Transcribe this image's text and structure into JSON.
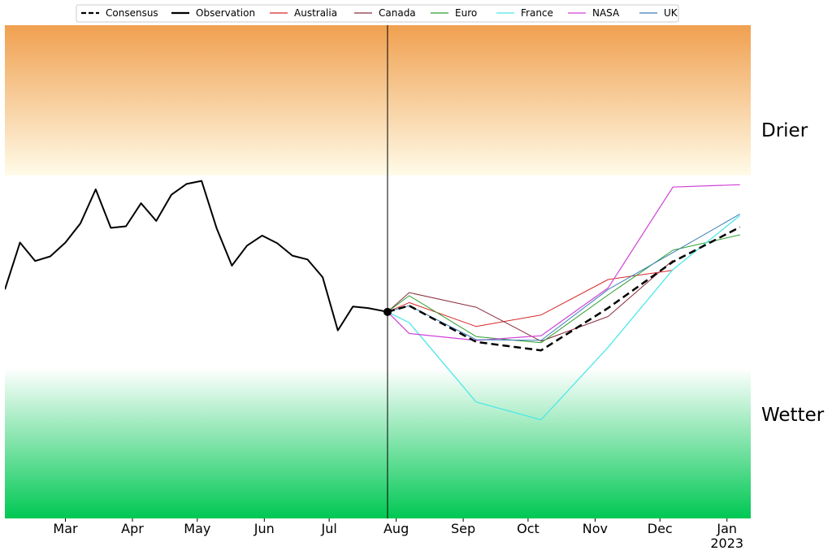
{
  "chart_data": {
    "type": "line",
    "title": "",
    "xlabel": "",
    "ylabel": "",
    "band_labels": {
      "upper": "Drier",
      "lower": "Wetter"
    },
    "x_tick_labels": [
      "Mar",
      "Apr",
      "May",
      "Jun",
      "Jul",
      "Aug",
      "Sep",
      "Oct",
      "Nov",
      "Dec",
      "Jan\n2023"
    ],
    "x_range": [
      "2022-02-01",
      "2023-01-12"
    ],
    "y_range": [
      -3.2,
      3.2
    ],
    "bands": [
      {
        "name": "Drier",
        "from": 1.25,
        "to": 3.2,
        "color_top": "#f0a050",
        "color_bottom": "#fffbe8"
      },
      {
        "name": "Neutral",
        "from": -1.25,
        "to": 1.25,
        "color": "#ffffff"
      },
      {
        "name": "Wetter",
        "from": -3.2,
        "to": -1.25,
        "color_top": "#ffffff",
        "color_bottom": "#00c853"
      }
    ],
    "forecast_start": "2022-07-28",
    "legend_position": "top-center",
    "grid": false,
    "series": [
      {
        "name": "Observation",
        "color": "#000000",
        "style": "solid",
        "width": 2,
        "x": [
          "2022-02-01",
          "2022-02-08",
          "2022-02-15",
          "2022-02-22",
          "2022-03-01",
          "2022-03-08",
          "2022-03-15",
          "2022-03-22",
          "2022-03-29",
          "2022-04-05",
          "2022-04-12",
          "2022-04-19",
          "2022-04-26",
          "2022-05-03",
          "2022-05-10",
          "2022-05-17",
          "2022-05-24",
          "2022-05-31",
          "2022-06-07",
          "2022-06-14",
          "2022-06-21",
          "2022-06-28",
          "2022-07-05",
          "2022-07-12",
          "2022-07-19",
          "2022-07-28"
        ],
        "y": [
          -0.23,
          0.38,
          0.14,
          0.2,
          0.38,
          0.63,
          1.07,
          0.57,
          0.59,
          0.89,
          0.66,
          1.0,
          1.14,
          1.18,
          0.56,
          0.08,
          0.34,
          0.47,
          0.37,
          0.21,
          0.16,
          -0.07,
          -0.76,
          -0.45,
          -0.47,
          -0.52
        ]
      },
      {
        "name": "Consensus",
        "color": "#000000",
        "style": "dashed",
        "width": 2.5,
        "x": [
          "2022-07-28",
          "2022-08-07",
          "2022-09-07",
          "2022-10-07",
          "2022-11-07",
          "2022-12-07",
          "2023-01-07"
        ],
        "y": [
          -0.52,
          -0.44,
          -0.91,
          -1.02,
          -0.47,
          0.13,
          0.58
        ]
      },
      {
        "name": "Australia",
        "color": "#d62728",
        "style": "solid",
        "width": 1,
        "x": [
          "2022-07-28",
          "2022-08-07",
          "2022-09-07",
          "2022-10-07",
          "2022-11-07",
          "2022-12-07"
        ],
        "y": [
          -0.52,
          -0.4,
          -0.71,
          -0.56,
          -0.1,
          0.02
        ]
      },
      {
        "name": "Canada",
        "color": "#8c2d3c",
        "style": "solid",
        "width": 1,
        "x": [
          "2022-07-28",
          "2022-08-07",
          "2022-09-07",
          "2022-10-07",
          "2022-11-07",
          "2022-12-07"
        ],
        "y": [
          -0.52,
          -0.27,
          -0.46,
          -0.9,
          -0.58,
          0.15
        ]
      },
      {
        "name": "Euro",
        "color": "#2ca02c",
        "style": "solid",
        "width": 1,
        "x": [
          "2022-07-28",
          "2022-08-07",
          "2022-09-07",
          "2022-10-07",
          "2022-11-07",
          "2022-12-07",
          "2023-01-07"
        ],
        "y": [
          -0.52,
          -0.31,
          -0.84,
          -0.92,
          -0.3,
          0.28,
          0.48
        ]
      },
      {
        "name": "France",
        "color": "#4ee8e8",
        "style": "solid",
        "width": 1.3,
        "x": [
          "2022-07-28",
          "2022-08-07",
          "2022-09-07",
          "2022-10-07",
          "2022-11-07",
          "2022-12-07",
          "2023-01-07"
        ],
        "y": [
          -0.52,
          -0.66,
          -1.69,
          -1.92,
          -0.98,
          0.03,
          0.73
        ]
      },
      {
        "name": "NASA",
        "color": "#d040d8",
        "style": "solid",
        "width": 1.2,
        "x": [
          "2022-07-28",
          "2022-08-07",
          "2022-09-07",
          "2022-10-07",
          "2022-11-07",
          "2022-12-07",
          "2023-01-07"
        ],
        "y": [
          -0.52,
          -0.8,
          -0.89,
          -0.83,
          -0.21,
          1.1,
          1.13
        ]
      },
      {
        "name": "UK",
        "color": "#3a7eb8",
        "style": "solid",
        "width": 1,
        "x": [
          "2022-07-28",
          "2022-08-07",
          "2022-09-07",
          "2022-10-07",
          "2022-11-07",
          "2022-12-07",
          "2023-01-07"
        ],
        "y": [
          -0.52,
          -0.44,
          -0.88,
          -0.89,
          -0.23,
          0.25,
          0.75
        ]
      }
    ],
    "legend_order": [
      "Consensus",
      "Observation",
      "Australia",
      "Canada",
      "Euro",
      "France",
      "NASA",
      "UK"
    ]
  }
}
